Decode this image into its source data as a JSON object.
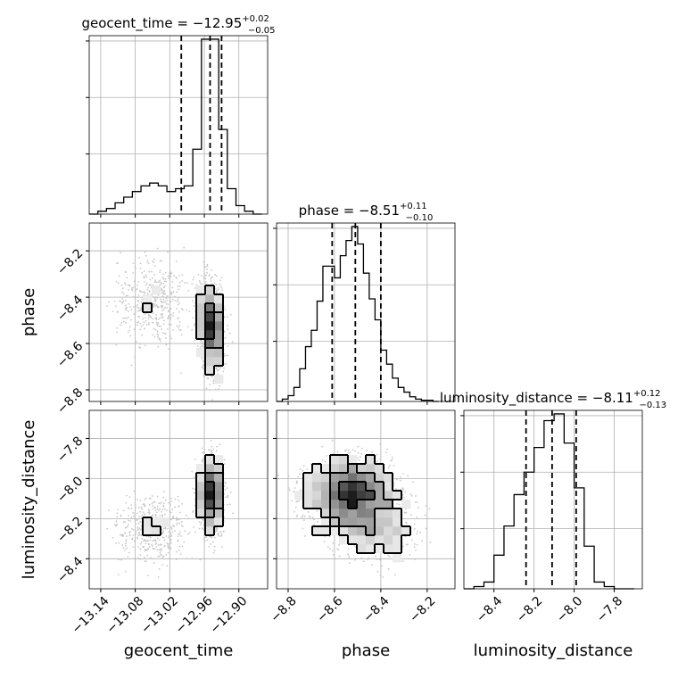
{
  "chart_data": {
    "type": "corner",
    "parameters": [
      "geocent_time",
      "phase",
      "luminosity_distance"
    ],
    "axis_labels": {
      "geocent_time": "geocent_time",
      "phase": "phase",
      "luminosity_distance": "luminosity_distance"
    },
    "ranges": {
      "geocent_time": [
        -13.16,
        -12.85
      ],
      "phase": [
        -8.85,
        -8.08
      ],
      "luminosity_distance": [
        -8.55,
        -7.66
      ]
    },
    "ticks": {
      "geocent_time": [
        -13.14,
        -13.08,
        -13.02,
        -12.96,
        -12.9
      ],
      "phase": [
        -8.8,
        -8.6,
        -8.4,
        -8.2
      ],
      "luminosity_distance": [
        -8.4,
        -8.2,
        -8.0,
        -7.8
      ]
    },
    "tick_labels": {
      "geocent_time": [
        "−13.14",
        "−13.08",
        "−13.02",
        "−12.96",
        "−12.90"
      ],
      "phase": [
        "−8.8",
        "−8.6",
        "−8.4",
        "−8.2"
      ],
      "luminosity_distance": [
        "−8.4",
        "−8.2",
        "−8.0",
        "−7.8"
      ]
    },
    "titles": {
      "geocent_time": {
        "prefix": "geocent_time = ",
        "value": "−12.95",
        "plus": "+0.02",
        "minus": "−0.05"
      },
      "phase": {
        "prefix": "phase = ",
        "value": "−8.51",
        "plus": "+0.11",
        "minus": "−0.10"
      },
      "luminosity_distance": {
        "prefix": "luminosity_distance = ",
        "value": "−8.11",
        "plus": "+0.12",
        "minus": "−0.13"
      }
    },
    "quantiles": {
      "geocent_time": [
        -13.0,
        -12.95,
        -12.93
      ],
      "phase": [
        -8.61,
        -8.51,
        -8.4
      ],
      "luminosity_distance": [
        -8.24,
        -8.11,
        -7.99
      ]
    },
    "histograms": {
      "geocent_time": {
        "edges": [
          -13.16,
          -13.145,
          -13.13,
          -13.115,
          -13.1,
          -13.085,
          -13.07,
          -13.055,
          -13.04,
          -13.025,
          -13.01,
          -12.995,
          -12.98,
          -12.965,
          -12.95,
          -12.935,
          -12.92,
          -12.905,
          -12.89,
          -12.875,
          -12.86
        ],
        "counts": [
          0,
          1,
          2,
          4,
          6,
          8,
          10,
          11,
          10,
          8,
          9,
          10,
          23,
          62,
          62,
          30,
          9,
          3,
          1,
          0
        ]
      },
      "phase": {
        "edges": [
          -8.85,
          -8.825,
          -8.8,
          -8.775,
          -8.75,
          -8.725,
          -8.7,
          -8.675,
          -8.65,
          -8.625,
          -8.6,
          -8.575,
          -8.55,
          -8.525,
          -8.5,
          -8.475,
          -8.45,
          -8.425,
          -8.4,
          -8.375,
          -8.35,
          -8.325,
          -8.3,
          -8.275,
          -8.25,
          -8.225,
          -8.2,
          -8.175,
          -8.15
        ],
        "counts": [
          0,
          2,
          5,
          12,
          28,
          47,
          61,
          86,
          116,
          116,
          106,
          125,
          138,
          150,
          135,
          110,
          88,
          70,
          44,
          32,
          20,
          12,
          8,
          4,
          2,
          1,
          1,
          0
        ]
      },
      "luminosity_distance": {
        "edges": [
          -8.55,
          -8.5,
          -8.45,
          -8.4,
          -8.35,
          -8.3,
          -8.25,
          -8.2,
          -8.15,
          -8.1,
          -8.05,
          -8.0,
          -7.95,
          -7.9,
          -7.85,
          -7.8,
          -7.75,
          -7.7
        ],
        "counts": [
          0,
          1,
          3,
          15,
          28,
          42,
          52,
          63,
          75,
          78,
          65,
          45,
          19,
          3,
          1,
          0,
          0
        ]
      }
    },
    "grid": true
  }
}
